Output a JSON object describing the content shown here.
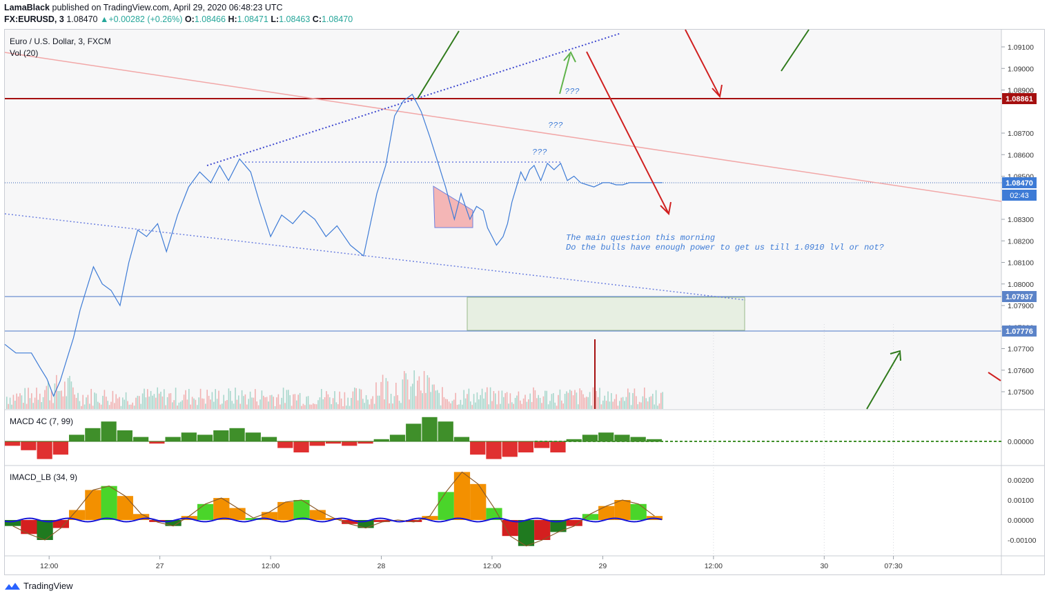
{
  "header": {
    "author": "LamaBlack",
    "published_text": "published on TradingView.com, April 29, 2020 06:48:23 UTC",
    "symbol": "FX:EURUSD, 3",
    "last": "1.08470",
    "change": "+0.00282 (+0.26%)",
    "open_label": "O:",
    "open": "1.08466",
    "high_label": "H:",
    "high": "1.08471",
    "low_label": "L:",
    "low": "1.08463",
    "close_label": "C:",
    "close": "1.08470",
    "up_icon": "triangle-up-icon"
  },
  "panes": {
    "main_title": "Euro / U.S. Dollar, 3, FXCM",
    "volume_label": "Vol (20)",
    "macd_label": "MACD 4C (7, 99)",
    "imacd_label": "IMACD_LB (34, 9)"
  },
  "annotations": {
    "note_line1": "The main question this morning",
    "note_line2": "Do the bulls have enough power to get us till 1.0910 lvl or not?",
    "q1": "???",
    "q2": "???",
    "q3": "???"
  },
  "price_badges": {
    "resistance": "1.08861",
    "current": "1.08470",
    "countdown": "02:43",
    "support_top": "1.07937",
    "support_bottom": "1.07776"
  },
  "footer": {
    "brand": "TradingView",
    "logo_icon": "tradingview-logo-icon"
  },
  "colors": {
    "price_line": "#3d7bd6",
    "resistance": "#a50f0f",
    "support": "#6b8fd0",
    "trendline": "#f2a7a7",
    "dotted": "#3e48d0",
    "up_arrow": "#2f7a1b",
    "down_arrow": "#d02020",
    "macd_up": "#3f8f2a",
    "macd_down": "#e03030",
    "imacd_orange": "#f39000",
    "imacd_green": "#4ad52a",
    "imacd_red": "#d41f1f",
    "imacd_signal": "#1515d8"
  },
  "chart_data": [
    {
      "type": "line",
      "title": "Euro / U.S. Dollar, 3, FXCM",
      "x_ticks": [
        "12:00",
        "27",
        "12:00",
        "28",
        "12:00",
        "29",
        "12:00",
        "30",
        "07:30"
      ],
      "y_ticks": [
        "1.09100",
        "1.09000",
        "1.08900",
        "1.08700",
        "1.08600",
        "1.08500",
        "1.08300",
        "1.08200",
        "1.08100",
        "1.08000",
        "1.07900",
        "1.07800",
        "1.07700",
        "1.07600",
        "1.07500"
      ],
      "ylim": [
        1.0742,
        1.0918
      ],
      "x_range_days": [
        26.3,
        30.8
      ],
      "series": [
        {
          "x": [
            26.3,
            26.35,
            26.42,
            26.46,
            26.49,
            26.52,
            26.55,
            26.58,
            26.61,
            26.64,
            26.67,
            26.7,
            26.74,
            26.78,
            26.82,
            26.86,
            26.9,
            26.94,
            26.99,
            27.03,
            27.08,
            27.13,
            27.18,
            27.23,
            27.27,
            27.31,
            27.36,
            27.41,
            27.45,
            27.5,
            27.55,
            27.6,
            27.65,
            27.7,
            27.75,
            27.8,
            27.86,
            27.92,
            27.98,
            28.02,
            28.06,
            28.1,
            28.14,
            28.18,
            28.22,
            28.26,
            28.29,
            28.33,
            28.36,
            28.4,
            28.43,
            28.46,
            28.48,
            28.5,
            28.52,
            28.55,
            28.57,
            28.59,
            28.61,
            28.63,
            28.65,
            28.67,
            28.69,
            28.72,
            28.75,
            28.78,
            28.81,
            28.84,
            28.87,
            28.9,
            28.93,
            28.96,
            29.0,
            29.03,
            29.06,
            29.09,
            29.12,
            29.15,
            29.19,
            29.23,
            29.27
          ],
          "y": [
            1.0772,
            1.0768,
            1.0768,
            1.0761,
            1.0756,
            1.0748,
            1.0755,
            1.0765,
            1.0775,
            1.0788,
            1.0798,
            1.0808,
            1.08,
            1.0797,
            1.079,
            1.081,
            1.0825,
            1.0822,
            1.0828,
            1.0815,
            1.0832,
            1.0845,
            1.0852,
            1.0847,
            1.0855,
            1.0848,
            1.0858,
            1.0852,
            1.0838,
            1.0822,
            1.0832,
            1.0828,
            1.0834,
            1.083,
            1.0822,
            1.0827,
            1.0818,
            1.0813,
            1.0842,
            1.0855,
            1.0878,
            1.0885,
            1.0888,
            1.088,
            1.0868,
            1.0855,
            1.0845,
            1.083,
            1.0842,
            1.083,
            1.0836,
            1.0834,
            1.0826,
            1.0822,
            1.0818,
            1.0822,
            1.0828,
            1.0838,
            1.0845,
            1.0852,
            1.0848,
            1.0853,
            1.0855,
            1.0848,
            1.0856,
            1.0853,
            1.0856,
            1.0848,
            1.085,
            1.0847,
            1.0846,
            1.0845,
            1.0847,
            1.0847,
            1.0846,
            1.0846,
            1.0847,
            1.0847,
            1.0847,
            1.0847,
            1.0847
          ],
          "name": ""
        }
      ]
    },
    {
      "type": "bar",
      "title": "MACD 4C (7, 99)",
      "values": [
        -0.2,
        -0.4,
        -0.8,
        -0.6,
        0.3,
        0.6,
        0.9,
        0.5,
        0.2,
        -0.1,
        0.2,
        0.4,
        0.3,
        0.5,
        0.6,
        0.4,
        0.2,
        -0.3,
        -0.5,
        -0.2,
        -0.1,
        -0.2,
        -0.1,
        0.1,
        0.3,
        0.8,
        1.1,
        0.9,
        0.2,
        -0.6,
        -0.8,
        -0.7,
        -0.5,
        -0.3,
        -0.5,
        0.1,
        0.3,
        0.4,
        0.3,
        0.2,
        0.1
      ]
    },
    {
      "type": "area",
      "title": "IMACD_LB (34, 9)",
      "y_ticks": [
        "0.00200",
        "0.00100",
        "0.00000",
        "-0.00100"
      ],
      "values": [
        -0.0003,
        -0.0007,
        -0.001,
        -0.0004,
        0.0005,
        0.0015,
        0.0017,
        0.0012,
        0.0003,
        -0.0001,
        -0.0003,
        0.0002,
        0.0008,
        0.0011,
        0.0006,
        0.0001,
        0.0004,
        0.0009,
        0.001,
        0.0005,
        0.0001,
        -0.0002,
        -0.0004,
        -0.0001,
        0.0,
        -0.0001,
        0.0002,
        0.0014,
        0.0024,
        0.0018,
        0.0006,
        -0.0008,
        -0.0013,
        -0.001,
        -0.0006,
        -0.0003,
        0.0003,
        0.0007,
        0.001,
        0.0008,
        0.0002
      ]
    }
  ]
}
